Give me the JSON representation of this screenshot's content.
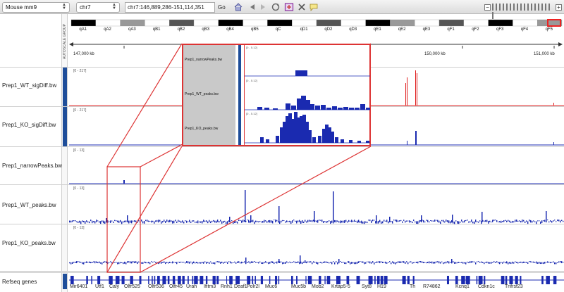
{
  "toolbar": {
    "genome": "Mouse mm9",
    "chromosome": "chr7",
    "locus": "chr7:146,889,286-151,114,351",
    "go_label": "Go",
    "icons": [
      "home-icon",
      "back-arrow-icon",
      "forward-arrow-icon",
      "refresh-icon",
      "region-of-interest-icon",
      "close-icon",
      "comment-icon"
    ]
  },
  "ideogram": {
    "bands": [
      "qA1",
      "qA2",
      "qA3",
      "qB1",
      "qB2",
      "qB3",
      "qB4",
      "qB5",
      "qC",
      "qD1",
      "qD2",
      "qD3",
      "qE1",
      "qE2",
      "qE3",
      "qF1",
      "qF2",
      "qF3",
      "qF4",
      "qF5"
    ]
  },
  "ruler": {
    "labels": [
      "147,000 kb",
      "150,000 kb",
      "151,000 kb"
    ]
  },
  "attribute_column": {
    "label": "AUTOSCALE GROUP"
  },
  "tracks": [
    {
      "name": "Prep1_WT_sigDiff.bw",
      "range": "[0 - 217]",
      "color": "#e02020"
    },
    {
      "name": "Prep1_KO_sigDiff.bw",
      "range": "[0 - 217]",
      "color": "#1a2ab0"
    },
    {
      "name": "Prep1_narrowPeaks.bw",
      "range": "[0 - 13]",
      "color": "#1a2ab0"
    },
    {
      "name": "Prep1_WT_peaks.bw",
      "range": "[0 - 13]",
      "color": "#1a2ab0"
    },
    {
      "name": "Prep1_KO_peaks.bw",
      "range": "[0 - 13]",
      "color": "#1a2ab0"
    },
    {
      "name": "Refseq genes",
      "color": "#1a2ab0"
    }
  ],
  "inset": {
    "tracks": [
      {
        "name": "Prep1_narrowPeaks.bw",
        "range": "[0 - 5.12]"
      },
      {
        "name": "Prep1_WT_peaks.bw",
        "range": "[0 - 5.12]"
      },
      {
        "name": "Prep1_KO_peaks.bw",
        "range": "[0 - 5.12]"
      }
    ]
  },
  "genes": [
    "Mir6401",
    "Utf1",
    "Caly",
    "Olfr525",
    "Olfr536",
    "Olfr45",
    "Urah",
    "Ifitm3",
    "Rnh1",
    "Deaf1",
    "Polr2l",
    "Muc6",
    "Muc5b",
    "Mob2",
    "Krtap5-5",
    "Syt8",
    "H19",
    "Th",
    "R74862",
    "Kcnq1",
    "Cdkn1c",
    "Tnfrsf23"
  ],
  "colors": {
    "accent_red": "#d33",
    "track_blue": "#1a2ab0",
    "strip_blue": "#1f4e9a"
  }
}
